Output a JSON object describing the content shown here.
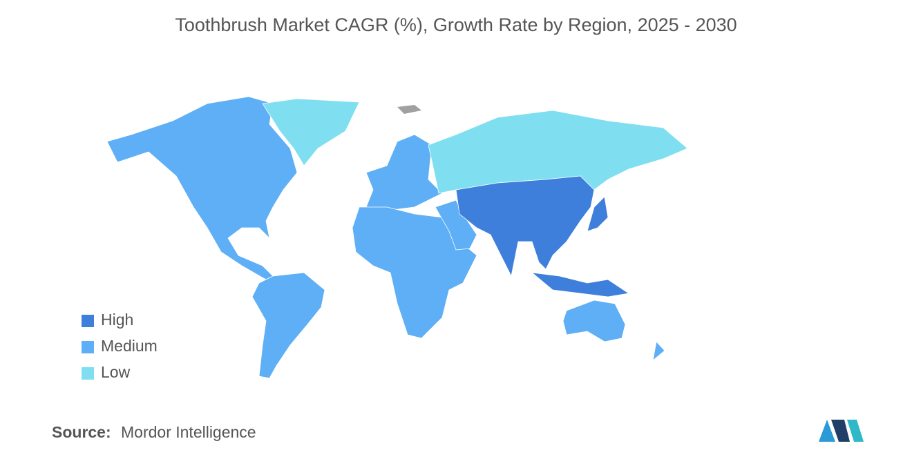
{
  "title": "Toothbrush Market CAGR (%), Growth Rate by Region, 2025 - 2030",
  "legend": [
    {
      "label": "High",
      "color": "#3f7fdc"
    },
    {
      "label": "Medium",
      "color": "#5eaff5"
    },
    {
      "label": "Low",
      "color": "#7fdff0"
    }
  ],
  "source": {
    "label": "Source:",
    "text": "Mordor Intelligence"
  }
}
